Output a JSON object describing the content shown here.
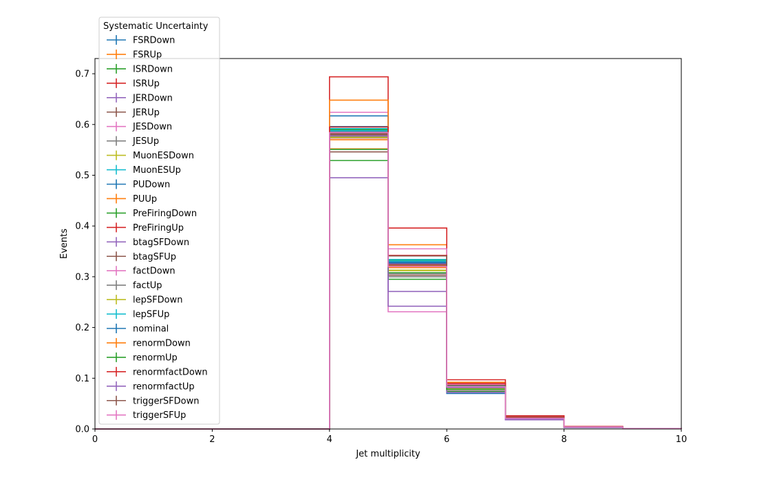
{
  "chart_data": {
    "type": "histogram-step",
    "xlabel": "Jet multiplicity",
    "ylabel": "Events",
    "xlim": [
      0,
      10
    ],
    "ylim": [
      0,
      0.73
    ],
    "x_ticks": [
      0,
      2,
      4,
      6,
      8,
      10
    ],
    "y_ticks": [
      0.0,
      0.1,
      0.2,
      0.3,
      0.4,
      0.5,
      0.6,
      0.7
    ],
    "x_tick_labels": [
      "0",
      "2",
      "4",
      "6",
      "8",
      "10"
    ],
    "y_tick_labels": [
      "0.0",
      "0.1",
      "0.2",
      "0.3",
      "0.4",
      "0.5",
      "0.6",
      "0.7"
    ],
    "grid": false,
    "legend": {
      "title": "Systematic Uncertainty",
      "placement": "upper-left"
    },
    "bin_edges": [
      0,
      1,
      2,
      3,
      4,
      5,
      6,
      7,
      8,
      9,
      10
    ],
    "series": [
      {
        "name": "FSRDown",
        "color": "#1f77b4",
        "values": [
          0,
          0,
          0,
          0,
          0.587,
          0.33,
          0.085,
          0.021,
          0.004,
          0.001
        ]
      },
      {
        "name": "FSRUp",
        "color": "#ff7f0e",
        "values": [
          0,
          0,
          0,
          0,
          0.57,
          0.322,
          0.082,
          0.02,
          0.004,
          0.001
        ]
      },
      {
        "name": "ISRDown",
        "color": "#2ca02c",
        "values": [
          0,
          0,
          0,
          0,
          0.59,
          0.332,
          0.083,
          0.021,
          0.004,
          0.001
        ]
      },
      {
        "name": "ISRUp",
        "color": "#d62728",
        "values": [
          0,
          0,
          0,
          0,
          0.583,
          0.325,
          0.083,
          0.021,
          0.004,
          0.001
        ]
      },
      {
        "name": "JERDown",
        "color": "#9467bd",
        "values": [
          0,
          0,
          0,
          0,
          0.58,
          0.326,
          0.082,
          0.021,
          0.004,
          0.001
        ]
      },
      {
        "name": "JERUp",
        "color": "#8c564b",
        "values": [
          0,
          0,
          0,
          0,
          0.582,
          0.323,
          0.083,
          0.021,
          0.004,
          0.001
        ]
      },
      {
        "name": "JESDown",
        "color": "#e377c2",
        "values": [
          0,
          0,
          0,
          0,
          0.573,
          0.231,
          0.075,
          0.018,
          0.003,
          0.001
        ]
      },
      {
        "name": "JESUp",
        "color": "#7f7f7f",
        "values": [
          0,
          0,
          0,
          0,
          0.585,
          0.3,
          0.09,
          0.024,
          0.005,
          0.001
        ]
      },
      {
        "name": "MuonESDown",
        "color": "#bcbd22",
        "values": [
          0,
          0,
          0,
          0,
          0.577,
          0.313,
          0.08,
          0.02,
          0.004,
          0.001
        ]
      },
      {
        "name": "MuonESUp",
        "color": "#17becf",
        "values": [
          0,
          0,
          0,
          0,
          0.592,
          0.334,
          0.084,
          0.021,
          0.004,
          0.001
        ]
      },
      {
        "name": "PUDown",
        "color": "#1f77b4",
        "values": [
          0,
          0,
          0,
          0,
          0.596,
          0.327,
          0.07,
          0.019,
          0.003,
          0.001
        ]
      },
      {
        "name": "PUUp",
        "color": "#ff7f0e",
        "values": [
          0,
          0,
          0,
          0,
          0.552,
          0.363,
          0.092,
          0.023,
          0.005,
          0.001
        ]
      },
      {
        "name": "PreFiringDown",
        "color": "#2ca02c",
        "values": [
          0,
          0,
          0,
          0,
          0.529,
          0.295,
          0.074,
          0.019,
          0.004,
          0.001
        ]
      },
      {
        "name": "PreFiringUp",
        "color": "#d62728",
        "values": [
          0,
          0,
          0,
          0,
          0.694,
          0.396,
          0.097,
          0.026,
          0.005,
          0.001
        ]
      },
      {
        "name": "btagSFDown",
        "color": "#9467bd",
        "values": [
          0,
          0,
          0,
          0,
          0.495,
          0.271,
          0.072,
          0.018,
          0.003,
          0.001
        ]
      },
      {
        "name": "btagSFUp",
        "color": "#8c564b",
        "values": [
          0,
          0,
          0,
          0,
          0.546,
          0.303,
          0.078,
          0.02,
          0.004,
          0.001
        ]
      },
      {
        "name": "factDown",
        "color": "#e377c2",
        "values": [
          0,
          0,
          0,
          0,
          0.624,
          0.355,
          0.088,
          0.022,
          0.004,
          0.001
        ]
      },
      {
        "name": "factUp",
        "color": "#7f7f7f",
        "values": [
          0,
          0,
          0,
          0,
          0.575,
          0.306,
          0.08,
          0.02,
          0.004,
          0.001
        ]
      },
      {
        "name": "lepSFDown",
        "color": "#bcbd22",
        "values": [
          0,
          0,
          0,
          0,
          0.574,
          0.312,
          0.079,
          0.02,
          0.004,
          0.001
        ]
      },
      {
        "name": "lepSFUp",
        "color": "#17becf",
        "values": [
          0,
          0,
          0,
          0,
          0.588,
          0.331,
          0.084,
          0.021,
          0.004,
          0.001
        ]
      },
      {
        "name": "nominal",
        "color": "#1f77b4",
        "values": [
          0,
          0,
          0,
          0,
          0.617,
          0.328,
          0.082,
          0.021,
          0.004,
          0.001
        ]
      },
      {
        "name": "renormDown",
        "color": "#ff7f0e",
        "values": [
          0,
          0,
          0,
          0,
          0.648,
          0.318,
          0.086,
          0.022,
          0.004,
          0.001
        ]
      },
      {
        "name": "renormUp",
        "color": "#2ca02c",
        "values": [
          0,
          0,
          0,
          0,
          0.551,
          0.308,
          0.078,
          0.02,
          0.004,
          0.001
        ]
      },
      {
        "name": "renormfactDown",
        "color": "#d62728",
        "values": [
          0,
          0,
          0,
          0,
          0.595,
          0.342,
          0.09,
          0.023,
          0.004,
          0.001
        ]
      },
      {
        "name": "renormfactUp",
        "color": "#9467bd",
        "values": [
          0,
          0,
          0,
          0,
          0.578,
          0.242,
          0.082,
          0.02,
          0.004,
          0.001
        ]
      },
      {
        "name": "triggerSFDown",
        "color": "#8c564b",
        "values": [
          0,
          0,
          0,
          0,
          0.58,
          0.341,
          0.086,
          0.022,
          0.004,
          0.001
        ]
      },
      {
        "name": "triggerSFUp",
        "color": "#e377c2",
        "values": [
          0,
          0,
          0,
          0,
          0.584,
          0.32,
          0.083,
          0.021,
          0.004,
          0.001
        ]
      }
    ]
  }
}
